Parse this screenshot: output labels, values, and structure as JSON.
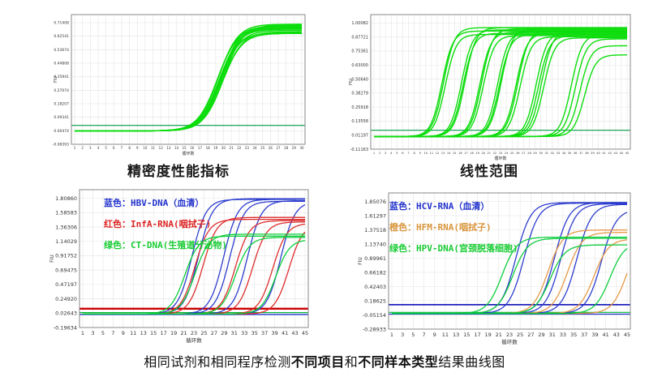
{
  "page": {
    "background": "#ffffff"
  },
  "captions": {
    "top_left": "精密度性能指标",
    "top_right": "线性范围",
    "bottom_segments": [
      {
        "text": "相同试剂和相同程序检测",
        "bold": false
      },
      {
        "text": "不同项目",
        "bold": true
      },
      {
        "text": "和",
        "bold": false
      },
      {
        "text": "不同样本类型",
        "bold": true
      },
      {
        "text": "结果曲线图",
        "bold": false
      }
    ]
  },
  "colors": {
    "curve_green": "#00DC00",
    "curve_blue": "#2233CC",
    "curve_red": "#DD2222",
    "curve_orange": "#E6953F",
    "threshold_green": "#009A44",
    "threshold_red": "#CC0000",
    "threshold_blue": "#2222BB"
  },
  "chart_data": [
    {
      "id": "precision",
      "type": "line",
      "title": "精密度性能指标",
      "xlabel": "循环数",
      "ylabel": "FIU",
      "x_min": 1,
      "x_max": 30,
      "x_label_step": 1,
      "y_ticks": [
        "0.71408",
        "0.62541",
        "0.53674",
        "0.44808",
        "0.35941",
        "0.27074",
        "0.18207",
        "0.09341",
        "0.00474",
        "-0.08393"
      ],
      "baseline": 0.004,
      "curve_k": 0.8,
      "threshold": {
        "value": 0.04,
        "color": "#009A44",
        "width": 1.1
      },
      "extra_lines": [],
      "groups": [
        {
          "name": "replicate-curves",
          "color": "#00DC00",
          "curves": [
            [
              19.2,
              0.672
            ],
            [
              19.35,
              0.7
            ],
            [
              19.5,
              0.645
            ],
            [
              19.6,
              0.69
            ],
            [
              19.7,
              0.66
            ],
            [
              19.8,
              0.685
            ],
            [
              19.9,
              0.65
            ],
            [
              20.0,
              0.695
            ],
            [
              19.45,
              0.668
            ],
            [
              19.65,
              0.678
            ],
            [
              19.85,
              0.64
            ],
            [
              19.3,
              0.688
            ]
          ]
        }
      ],
      "legend": []
    },
    {
      "id": "linear-range",
      "type": "line",
      "title": "线性范围",
      "xlabel": "循环数",
      "ylabel": "FIU",
      "x_min": 1,
      "x_max": 45,
      "x_label_step": 1,
      "y_ticks": [
        "1.00082",
        "0.87721",
        "0.75361",
        "0.63000",
        "0.50640",
        "0.38279",
        "0.25918",
        "0.13558",
        "0.01197",
        "-0.11163"
      ],
      "baseline": 0.0,
      "curve_k": 1.05,
      "threshold": {
        "value": 0.055,
        "color": "#009A44",
        "width": 1.1
      },
      "extra_lines": [],
      "groups": [
        {
          "name": "dilution-series",
          "color": "#00DC00",
          "curves": [
            [
              12.8,
              0.93
            ],
            [
              13.1,
              0.96
            ],
            [
              13.4,
              0.9
            ],
            [
              16.2,
              0.94
            ],
            [
              16.5,
              0.91
            ],
            [
              16.8,
              0.96
            ],
            [
              19.4,
              0.92
            ],
            [
              19.7,
              0.95
            ],
            [
              20.0,
              0.89
            ],
            [
              22.5,
              0.93
            ],
            [
              22.8,
              0.9
            ],
            [
              23.1,
              0.95
            ],
            [
              25.7,
              0.91
            ],
            [
              26.0,
              0.94
            ],
            [
              26.4,
              0.88
            ],
            [
              29.2,
              0.92
            ],
            [
              29.6,
              0.89
            ],
            [
              30.1,
              0.93
            ],
            [
              30.5,
              0.87
            ],
            [
              35.3,
              0.9
            ],
            [
              36.0,
              0.86
            ],
            [
              36.8,
              0.8
            ],
            [
              37.6,
              0.72
            ]
          ]
        }
      ],
      "legend": []
    },
    {
      "id": "different-targets",
      "type": "line",
      "title": "",
      "xlabel": "循环数",
      "ylabel": "FIU",
      "x_min": 1,
      "x_max": 45,
      "x_label_step": 2,
      "y_ticks": [
        "1.80860",
        "1.58583",
        "1.36306",
        "1.14029",
        "0.91752",
        "0.69475",
        "0.47197",
        "0.24920",
        "0.02643",
        "-0.19634"
      ],
      "baseline": 0.012,
      "curve_k": 0.72,
      "threshold": {
        "value": 0.095,
        "color": "#CC0000",
        "width": 2.4
      },
      "extra_lines": [
        {
          "value": 0.036,
          "color": "#00BB33",
          "width": 1.1
        },
        {
          "value": 0.006,
          "color": "#2233CC",
          "width": 1.3
        }
      ],
      "groups": [
        {
          "name": "HBV-DNA",
          "color": "#2233CC",
          "curves": [
            [
              22.6,
              1.78
            ],
            [
              23.9,
              1.79
            ],
            [
              28.9,
              1.78
            ],
            [
              30.1,
              1.75
            ],
            [
              33.6,
              1.76
            ],
            [
              40.2,
              1.75
            ]
          ]
        },
        {
          "name": "InfA-RNA",
          "color": "#DD2222",
          "curves": [
            [
              23.2,
              1.47
            ],
            [
              24.8,
              1.5
            ],
            [
              31.2,
              1.45
            ],
            [
              34.6,
              1.43
            ],
            [
              38.6,
              1.41
            ],
            [
              41.8,
              1.4
            ]
          ]
        },
        {
          "name": "CT-DNA",
          "color": "#00CC33",
          "curves": [
            [
              21.2,
              1.21
            ],
            [
              23.2,
              1.24
            ],
            [
              31.2,
              1.19
            ],
            [
              39.2,
              1.16
            ]
          ]
        }
      ],
      "legend": [
        {
          "color": "#2233CC",
          "text": "蓝色：HBV-DNA（血清）"
        },
        {
          "color": "#DD2222",
          "text": "红色：InfA-RNA(咽拭子)"
        },
        {
          "color": "#18CC33",
          "text": "绿色：CT-DNA(生殖道分泌物)"
        }
      ]
    },
    {
      "id": "different-samples",
      "type": "line",
      "title": "",
      "xlabel": "循环数",
      "ylabel": "FIU",
      "x_min": 1,
      "x_max": 45,
      "x_label_step": 2,
      "y_ticks": [
        "1.85076",
        "1.61297",
        "1.37518",
        "1.13740",
        "0.89961",
        "0.66182",
        "0.42403",
        "0.18625",
        "-0.05154",
        "-0.28933"
      ],
      "baseline": -0.028,
      "curve_k": 0.72,
      "threshold": {
        "value": 0.12,
        "color": "#2222BB",
        "width": 1.8
      },
      "extra_lines": [
        {
          "value": -0.008,
          "color": "#00BB33",
          "width": 1.2
        },
        {
          "value": -0.038,
          "color": "#2233CC",
          "width": 1.2
        }
      ],
      "groups": [
        {
          "name": "HCV-RNA",
          "color": "#2233CC",
          "curves": [
            [
              24.2,
              1.86
            ],
            [
              25.7,
              1.85
            ],
            [
              31.4,
              1.86
            ],
            [
              32.6,
              1.84
            ],
            [
              35.6,
              1.83
            ],
            [
              40.2,
              1.75
            ]
          ]
        },
        {
          "name": "HFM-RNA",
          "color": "#E6953F",
          "curves": [
            [
              30.2,
              1.4
            ],
            [
              33.8,
              1.36
            ],
            [
              38.8,
              1.25
            ],
            [
              45.0,
              1.35
            ]
          ]
        },
        {
          "name": "HPV-DNA",
          "color": "#00CC33",
          "curves": [
            [
              21.6,
              1.28
            ],
            [
              23.6,
              1.26
            ],
            [
              30.6,
              1.15
            ],
            [
              41.8,
              1.2
            ]
          ]
        }
      ],
      "legend": [
        {
          "color": "#2233CC",
          "text": "蓝色：HCV-RNA（血清）"
        },
        {
          "color": "#D9953C",
          "text": "橙色：HFM-RNA(咽拭子)"
        },
        {
          "color": "#18CC33",
          "text": "绿色：HPV-DNA(宫颈脱落细胞)"
        }
      ]
    }
  ]
}
